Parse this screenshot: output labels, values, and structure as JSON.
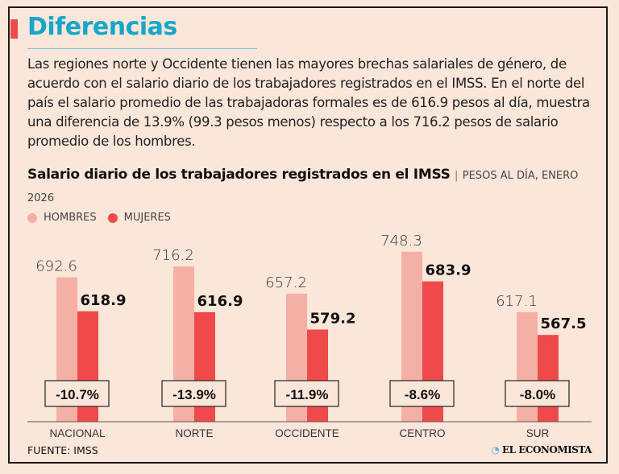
{
  "title": "Diferencias",
  "intro": "Las regiones norte y Occidente tienen las mayores brechas salariales de género, de acuerdo con el salario diario de los trabajadores registrados en el IMSS. En el norte del país el salario promedio de las trabajadoras formales es de 616.9 pesos al día, muestra una diferencia de 13.9% (99.3 pesos menos) respecto a los 716.2 pesos de salario promedio de los hombres.",
  "source": "FUENTE: IMSS",
  "logo": "EL ECONOMISTA",
  "chart_data": {
    "type": "bar",
    "title": "Salario diario de los trabajadores registrados en el IMSS",
    "subtitle": "PESOS AL DÍA, ENERO 2026",
    "legend_position": "top-left",
    "grid": false,
    "categories": [
      "NACIONAL",
      "NORTE",
      "OCCIDENTE",
      "CENTRO",
      "SUR"
    ],
    "series": [
      {
        "name": "HOMBRES",
        "color": "#f5b0a6",
        "values": [
          692.6,
          716.2,
          657.2,
          748.3,
          617.1
        ]
      },
      {
        "name": "MUJERES",
        "color": "#ee4a49",
        "values": [
          618.9,
          616.9,
          579.2,
          683.9,
          567.5
        ]
      }
    ],
    "differences": [
      "-10.7%",
      "-13.9%",
      "-11.9%",
      "-8.6%",
      "-8.0%"
    ]
  }
}
